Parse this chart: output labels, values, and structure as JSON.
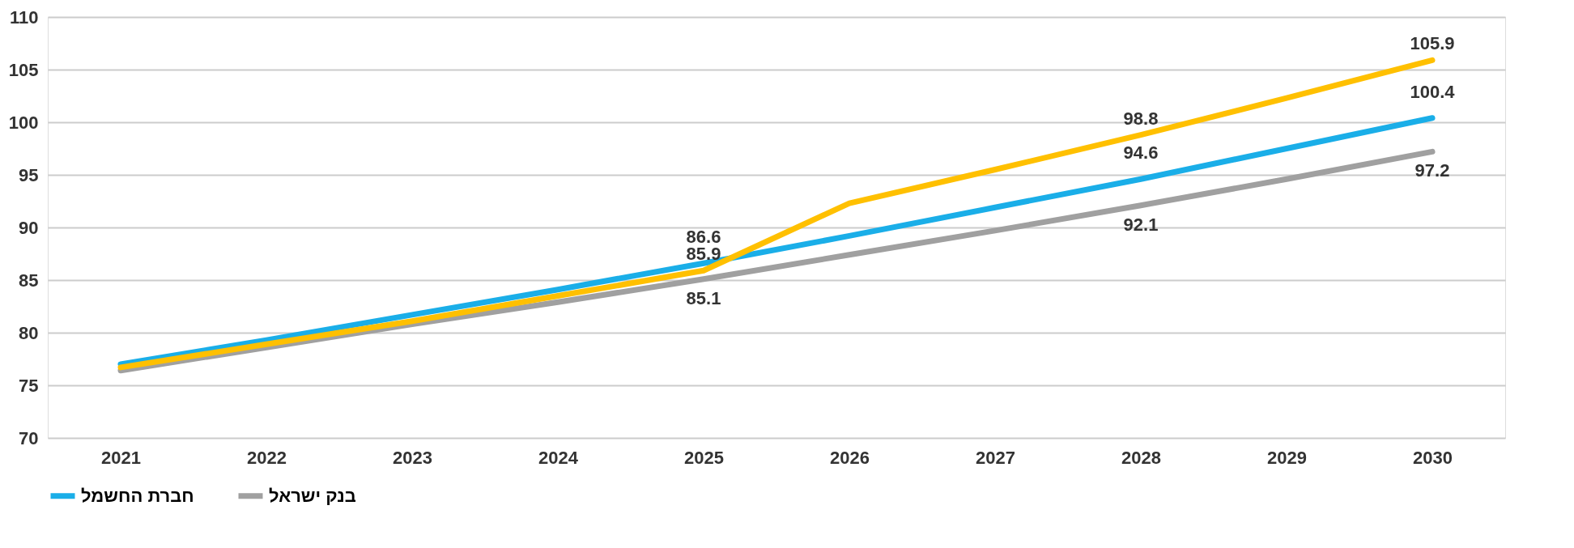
{
  "chart_data": {
    "type": "line",
    "categories": [
      "2021",
      "2022",
      "2023",
      "2024",
      "2025",
      "2026",
      "2027",
      "2028",
      "2029",
      "2030"
    ],
    "series": [
      {
        "name": "חברת החשמל",
        "color": "#1aaee8",
        "values": [
          77.0,
          79.3,
          81.7,
          84.1,
          86.6,
          89.2,
          91.9,
          94.6,
          97.5,
          100.4
        ],
        "value_labels": [
          null,
          null,
          null,
          null,
          "86.6",
          null,
          null,
          "94.6",
          null,
          "100.4"
        ]
      },
      {
        "name": "בנק ישראל",
        "color": "#a0a0a0",
        "values": [
          76.4,
          78.6,
          80.8,
          82.9,
          85.1,
          87.4,
          89.7,
          92.1,
          94.6,
          97.2
        ],
        "value_labels": [
          null,
          null,
          null,
          null,
          "85.1",
          null,
          null,
          "92.1",
          null,
          "97.2"
        ]
      },
      {
        "color": "#ffc000",
        "values": [
          76.7,
          78.9,
          81.1,
          83.5,
          85.9,
          92.3,
          95.5,
          98.8,
          102.3,
          105.9
        ],
        "value_labels": [
          null,
          null,
          null,
          null,
          "85.9",
          null,
          null,
          "98.8",
          null,
          "105.9"
        ]
      }
    ],
    "ylim": [
      70,
      110
    ],
    "yticks": [
      70,
      75,
      80,
      85,
      90,
      95,
      100,
      105,
      110
    ],
    "grid": "y",
    "legend": "bottom",
    "marker": "none",
    "line_style": "solid"
  }
}
